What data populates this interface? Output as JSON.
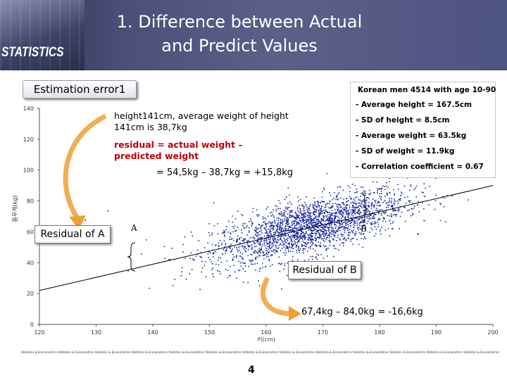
{
  "header": {
    "section_word": "STATISTICS",
    "title_line1": "1.  Difference between Actual",
    "title_line2": "and Predict Values"
  },
  "subtitle": "Estimation error1",
  "info_box": {
    "heading": "Korean men 4514 with age 10-90",
    "lines": [
      "- Average height = 167.5cm",
      "- SD of height = 8.5cm",
      "- Average weight = 63.5kg",
      "- SD of weight = 11.9kg",
      "- Correlation coefficient = 0.67"
    ]
  },
  "notes": {
    "height_note": "height141cm, average weight of height 141cm is 38,7kg",
    "residual_def": "residual = actual weight – predicted weight",
    "calc_a": "= 54,5kg – 38,7kg = +15,8kg",
    "calc_b": "67,4kg – 84,0kg = -16,6kg"
  },
  "callouts": {
    "residual_a": "Residual of A",
    "residual_b": "Residual of B",
    "point_a": "A",
    "point_b": "B"
  },
  "chart_data": {
    "type": "scatter",
    "xlabel": "키(cm)",
    "ylabel": "몸무게(kg)",
    "xlim": [
      120,
      200
    ],
    "ylim": [
      0,
      140
    ],
    "xticks": [
      "120",
      "130",
      "140",
      "150",
      "160",
      "170",
      "180",
      "190",
      "200"
    ],
    "yticks": [
      "0",
      "20",
      "40",
      "60",
      "80",
      "100",
      "120",
      "140"
    ],
    "n_points": 4514,
    "center": [
      167.5,
      63.5
    ],
    "regression_line": {
      "x": [
        120,
        200
      ],
      "y": [
        22,
        90
      ]
    }
  },
  "footer": {
    "strip_text": "Statistics & Econometrics Statistics & Econometrics Statistics & Econometrics Statistics & Econometrics Statistics & Econometrics Statistics & Econometrics Statistics & Econometrics Statistics & Econometrics Statistics & Econometrics Statistics & Econometrics Statistics & Econometrics Statistics & Econometrics Statistics & Econometrics Statistics & Econometrics Statistics & Econometrics",
    "page_number": "4"
  },
  "colors": {
    "header_bg": "#4a5078",
    "point_color": "#1a2aa0",
    "accent_red": "#c00000",
    "arrow_orange": "#f0a030"
  }
}
